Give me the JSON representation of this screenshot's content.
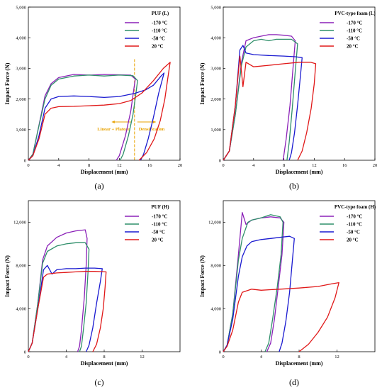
{
  "chart_data": [
    {
      "type": "line",
      "panel_label": "(a)",
      "title": "PUF (L)",
      "xlabel": "Displacement (mm)",
      "ylabel": "Impact Force (N)",
      "xlim": [
        0,
        20
      ],
      "ylim": [
        0,
        5000
      ],
      "xticks": [
        "0",
        "4",
        "8",
        "12",
        "16",
        "20"
      ],
      "yticks": [
        "0",
        "1,000",
        "2,000",
        "3,000",
        "4,000",
        "5,000"
      ],
      "legend_position": "top-right",
      "annotations": {
        "left_region": "Linear + Plateau",
        "right_region": "Densification",
        "divider_x": 14
      },
      "series": [
        {
          "name": "-170 °C",
          "color": "#8b21b8",
          "x": [
            0,
            0.6,
            1.2,
            2.2,
            3.0,
            4.0,
            6.0,
            8.0,
            10.0,
            12.0,
            13.5,
            14.1,
            13.9,
            13.5,
            12.8,
            12.0,
            11.6
          ],
          "y": [
            0,
            200,
            900,
            2100,
            2500,
            2700,
            2800,
            2780,
            2800,
            2790,
            2780,
            2650,
            2300,
            1600,
            800,
            150,
            0
          ]
        },
        {
          "name": "-110 °C",
          "color": "#2f8f6a",
          "x": [
            0,
            0.6,
            1.2,
            2.2,
            3.0,
            4.0,
            6.0,
            8.0,
            10.0,
            12.0,
            13.8,
            14.4,
            14.2,
            13.8,
            13.2,
            12.5,
            12.1
          ],
          "y": [
            0,
            200,
            900,
            2000,
            2450,
            2650,
            2750,
            2780,
            2750,
            2780,
            2760,
            2600,
            2200,
            1500,
            800,
            200,
            0
          ]
        },
        {
          "name": "-50 °C",
          "color": "#1a1ad0",
          "x": [
            0,
            0.6,
            1.4,
            2.2,
            3.0,
            4.0,
            6.0,
            8.0,
            10.0,
            12.0,
            14.0,
            15.5,
            16.5,
            17.5,
            17.9,
            17.2,
            16.5,
            15.8,
            15.2,
            14.8
          ],
          "y": [
            0,
            150,
            800,
            1700,
            2000,
            2080,
            2100,
            2080,
            2050,
            2080,
            2180,
            2300,
            2450,
            2750,
            2850,
            2200,
            1400,
            700,
            200,
            0
          ]
        },
        {
          "name": "20 °C",
          "color": "#e01818",
          "x": [
            0,
            0.6,
            1.4,
            2.2,
            3.0,
            4.0,
            6.0,
            8.0,
            10.0,
            12.0,
            13.5,
            15.0,
            16.5,
            17.8,
            18.7,
            18.4,
            18.0,
            17.4,
            16.6,
            15.6,
            14.6
          ],
          "y": [
            0,
            150,
            700,
            1500,
            1700,
            1750,
            1760,
            1780,
            1800,
            1850,
            1950,
            2200,
            2600,
            3000,
            3200,
            2700,
            2000,
            1300,
            700,
            250,
            0
          ]
        }
      ]
    },
    {
      "type": "line",
      "panel_label": "(b)",
      "title": "PVC-type foam (L)",
      "xlabel": "Displacement (mm)",
      "ylabel": "Impact Force (N)",
      "xlim": [
        0,
        20
      ],
      "ylim": [
        0,
        5000
      ],
      "xticks": [
        "0",
        "4",
        "8",
        "12",
        "16",
        "20"
      ],
      "yticks": [
        "0",
        "1,000",
        "2,000",
        "3,000",
        "4,000",
        "5,000"
      ],
      "legend_position": "top-right",
      "series": [
        {
          "name": "-170 °C",
          "color": "#8b21b8",
          "x": [
            0,
            0.8,
            1.6,
            2.4,
            3.0,
            4.0,
            5.0,
            6.0,
            7.0,
            8.0,
            9.0,
            9.5,
            9.2,
            8.8,
            8.3,
            7.9
          ],
          "y": [
            0,
            300,
            1500,
            3200,
            3900,
            4000,
            4050,
            4100,
            4100,
            4080,
            4050,
            3900,
            3000,
            1800,
            700,
            0
          ]
        },
        {
          "name": "-110 °C",
          "color": "#2f8f6a",
          "x": [
            0,
            0.8,
            1.6,
            2.4,
            3.0,
            4.0,
            5.0,
            6.0,
            7.0,
            8.0,
            9.0,
            9.8,
            9.5,
            9.1,
            8.7,
            8.4
          ],
          "y": [
            0,
            300,
            1500,
            3100,
            3700,
            3900,
            3950,
            3900,
            3950,
            3950,
            3950,
            3800,
            2900,
            1700,
            600,
            0
          ]
        },
        {
          "name": "-50 °C",
          "color": "#1a1ad0",
          "x": [
            0,
            0.8,
            1.6,
            2.2,
            2.6,
            3.0,
            4.0,
            6.0,
            8.0,
            9.5,
            10.4,
            10.2,
            9.8,
            9.4,
            9.0,
            8.7
          ],
          "y": [
            0,
            300,
            1800,
            3600,
            3750,
            3500,
            3450,
            3420,
            3400,
            3380,
            3350,
            2800,
            1800,
            900,
            250,
            0
          ]
        },
        {
          "name": "20 °C",
          "color": "#e01818",
          "x": [
            0,
            0.8,
            1.6,
            2.2,
            2.6,
            3.0,
            4.0,
            6.0,
            8.0,
            10.0,
            11.5,
            12.2,
            12.0,
            11.6,
            11.0,
            10.4,
            9.8
          ],
          "y": [
            0,
            300,
            1800,
            3400,
            2400,
            3200,
            3050,
            3100,
            3150,
            3200,
            3200,
            3150,
            2500,
            1700,
            900,
            300,
            0
          ]
        }
      ]
    },
    {
      "type": "line",
      "panel_label": "(c)",
      "title": "PUF (H)",
      "xlabel": "Displacement (mm)",
      "ylabel": "Impact Force (N)",
      "xlim": [
        0,
        16
      ],
      "ylim": [
        0,
        14000
      ],
      "xticks": [
        "0",
        "4",
        "8",
        "12"
      ],
      "yticks": [
        "0",
        "4,000",
        "8,000",
        "12,000"
      ],
      "legend_position": "top-right",
      "series": [
        {
          "name": "-170 °C",
          "color": "#8b21b8",
          "x": [
            0,
            0.4,
            1.0,
            1.5,
            2.0,
            3.0,
            4.0,
            5.0,
            6.0,
            6.2,
            6.1,
            5.9,
            5.6,
            5.4,
            5.2
          ],
          "y": [
            0,
            800,
            4500,
            8500,
            9800,
            10600,
            11000,
            11200,
            11300,
            10500,
            8000,
            5000,
            2000,
            500,
            0
          ]
        },
        {
          "name": "-110 °C",
          "color": "#2f8f6a",
          "x": [
            0,
            0.4,
            1.0,
            1.5,
            2.0,
            3.0,
            4.0,
            5.0,
            6.0,
            6.4,
            6.3,
            6.1,
            5.8,
            5.6,
            5.4
          ],
          "y": [
            0,
            800,
            4500,
            8200,
            9300,
            9800,
            10000,
            10100,
            10100,
            9500,
            7500,
            4500,
            2000,
            500,
            0
          ]
        },
        {
          "name": "-50 °C",
          "color": "#1a1ad0",
          "x": [
            0,
            0.4,
            1.0,
            1.6,
            2.0,
            2.5,
            3.0,
            4.0,
            5.0,
            6.0,
            7.0,
            7.8,
            7.6,
            7.2,
            6.8,
            6.4,
            6.1
          ],
          "y": [
            0,
            800,
            4000,
            7600,
            8000,
            7200,
            7600,
            7700,
            7700,
            7750,
            7750,
            7700,
            6500,
            4500,
            2200,
            600,
            0
          ]
        },
        {
          "name": "20 °C",
          "color": "#e01818",
          "x": [
            0,
            0.4,
            1.0,
            1.6,
            2.0,
            3.0,
            4.0,
            5.0,
            6.0,
            7.0,
            8.2,
            8.1,
            7.9,
            7.6,
            7.2,
            6.8
          ],
          "y": [
            0,
            800,
            4000,
            6900,
            7200,
            7300,
            7350,
            7400,
            7450,
            7450,
            7400,
            6000,
            4000,
            2200,
            700,
            0
          ]
        }
      ]
    },
    {
      "type": "line",
      "panel_label": "(d)",
      "title": "PVC-type foam (H)",
      "xlabel": "Displacement (mm)",
      "ylabel": "Impact Force (N)",
      "xlim": [
        0,
        16
      ],
      "ylim": [
        0,
        14000
      ],
      "xticks": [
        "0",
        "4",
        "8",
        "12"
      ],
      "yticks": [
        "0",
        "4,000",
        "8,000",
        "12,000"
      ],
      "legend_position": "top-right",
      "series": [
        {
          "name": "-170 °C",
          "color": "#8b21b8",
          "x": [
            0,
            0.4,
            1.0,
            1.6,
            2.0,
            2.4,
            3.0,
            4.0,
            5.0,
            6.0,
            6.4,
            6.2,
            5.8,
            5.4,
            5.0,
            4.6
          ],
          "y": [
            0,
            600,
            3500,
            9000,
            12900,
            11800,
            12200,
            12400,
            12500,
            12400,
            12000,
            9000,
            6000,
            3000,
            800,
            0
          ]
        },
        {
          "name": "-110 °C",
          "color": "#2f8f6a",
          "x": [
            0,
            0.4,
            1.0,
            1.6,
            2.0,
            2.6,
            3.0,
            4.0,
            5.0,
            6.0,
            6.3,
            6.1,
            5.7,
            5.2,
            4.8,
            4.4
          ],
          "y": [
            0,
            600,
            3500,
            8500,
            10500,
            12000,
            12200,
            12400,
            12700,
            12500,
            12000,
            9000,
            6000,
            3000,
            800,
            0
          ]
        },
        {
          "name": "-50 °C",
          "color": "#1a1ad0",
          "x": [
            0,
            0.4,
            1.0,
            1.6,
            2.0,
            2.5,
            3.0,
            4.0,
            5.0,
            6.0,
            7.0,
            7.5,
            7.3,
            7.0,
            6.6,
            6.2,
            5.9
          ],
          "y": [
            0,
            600,
            3000,
            7000,
            8800,
            9800,
            10200,
            10400,
            10500,
            10600,
            10700,
            10500,
            8500,
            5500,
            2800,
            800,
            0
          ]
        },
        {
          "name": "20 °C",
          "color": "#e01818",
          "x": [
            0,
            0.4,
            1.0,
            1.6,
            2.0,
            3.0,
            4.0,
            5.0,
            6.0,
            8.0,
            10.0,
            11.5,
            12.2,
            11.8,
            11.0,
            10.0,
            9.0,
            8.0
          ],
          "y": [
            0,
            500,
            2000,
            4600,
            5500,
            5800,
            5700,
            5750,
            5800,
            5900,
            6050,
            6300,
            6400,
            5000,
            3200,
            1800,
            700,
            0
          ]
        }
      ]
    }
  ],
  "legend_labels": [
    "-170 °C",
    "-110 °C",
    "-50 °C",
    "20 °C"
  ]
}
